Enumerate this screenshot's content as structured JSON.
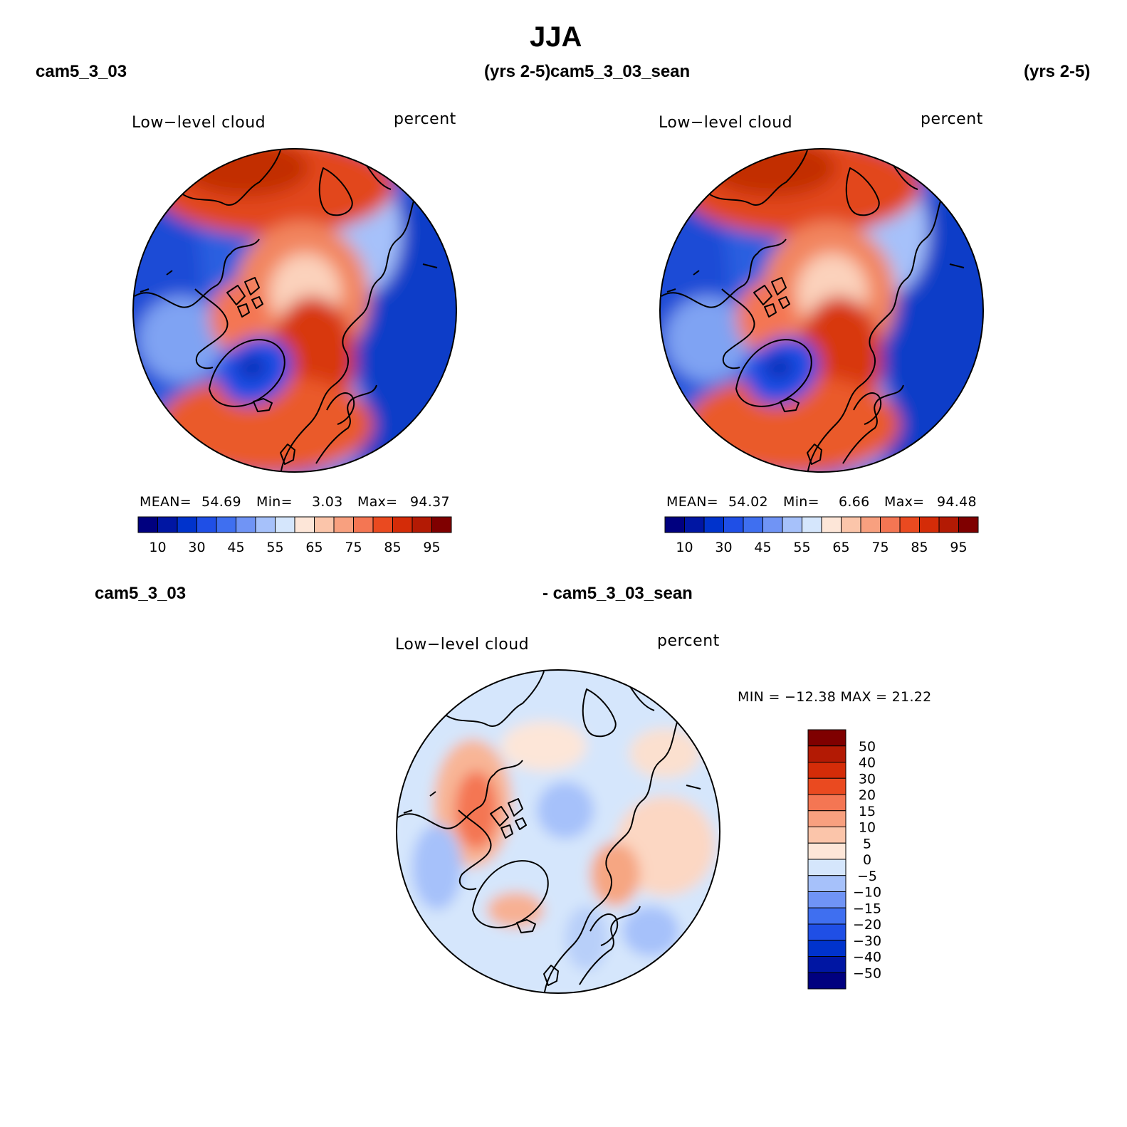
{
  "title": "JJA",
  "panels": [
    {
      "case": "cam5_3_03",
      "years": "(yrs 2-5)",
      "variable": "Low−level cloud",
      "units": "percent",
      "stats": {
        "mean_label": "MEAN=",
        "mean": "54.69",
        "min_label": "Min=",
        "min": "3.03",
        "max_label": "Max=",
        "max": "94.37"
      }
    },
    {
      "case": "cam5_3_03_sean",
      "years": "(yrs 2-5)",
      "variable": "Low−level cloud",
      "units": "percent",
      "stats": {
        "mean_label": "MEAN=",
        "mean": "54.02",
        "min_label": "Min=",
        "min": "6.66",
        "max_label": "Max=",
        "max": "94.48"
      }
    }
  ],
  "diff_panel": {
    "case_a": "cam5_3_03",
    "case_b": "- cam5_3_03_sean",
    "variable": "Low−level cloud",
    "units": "percent",
    "minmax": "MIN = −12.38 MAX =   21.22"
  },
  "colorbar_main": {
    "colors": [
      "#00007f",
      "#0016a3",
      "#0033cc",
      "#1f4fe6",
      "#3f6ff0",
      "#7094f5",
      "#a6c1fa",
      "#d5e6fc",
      "#fde6d8",
      "#fbc5aa",
      "#f8a07f",
      "#f47653",
      "#ea4a20",
      "#d42c08",
      "#b31a04",
      "#7f0000"
    ],
    "ticks": [
      "10",
      "30",
      "45",
      "55",
      "65",
      "75",
      "85",
      "95"
    ]
  },
  "colorbar_diff": {
    "colors": [
      "#7f0000",
      "#b31a04",
      "#d42c08",
      "#ea4a20",
      "#f47653",
      "#f8a07f",
      "#fbc5aa",
      "#fde6d8",
      "#d5e6fc",
      "#a6c1fa",
      "#7094f5",
      "#3f6ff0",
      "#1f4fe6",
      "#0033cc",
      "#0016a3",
      "#00007f"
    ],
    "ticks": [
      "50",
      "40",
      "30",
      "20",
      "15",
      "10",
      "5",
      "0",
      "−5",
      "−10",
      "−15",
      "−20",
      "−30",
      "−40",
      "−50"
    ]
  }
}
